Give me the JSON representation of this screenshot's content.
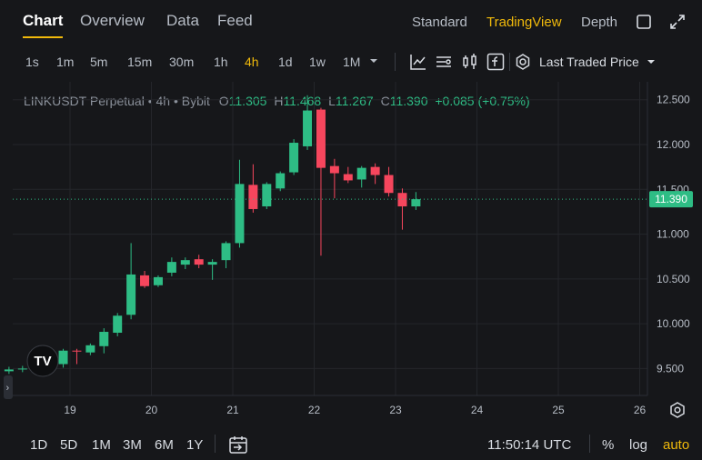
{
  "tabs": [
    {
      "label": "Chart"
    },
    {
      "label": "Overview"
    },
    {
      "label": "Data"
    },
    {
      "label": "Feed"
    }
  ],
  "views": [
    {
      "label": "Standard"
    },
    {
      "label": "TradingView"
    },
    {
      "label": "Depth"
    }
  ],
  "timeframes": [
    "1s",
    "1m",
    "5m",
    "15m",
    "30m",
    "1h",
    "4h",
    "1d",
    "1w",
    "1M"
  ],
  "active_timeframe": "4h",
  "price_source": "Last Traded Price",
  "legend": {
    "symbol": "LINKUSDT Perpetual • 4h • Bybit",
    "o_label": "O",
    "o": "11.305",
    "h_label": "H",
    "h": "11.468",
    "l_label": "L",
    "l": "11.267",
    "c_label": "C",
    "c": "11.390",
    "change": "+0.085 (+0.75%)"
  },
  "bottom": {
    "ranges": [
      "1D",
      "5D",
      "1M",
      "3M",
      "6M",
      "1Y"
    ],
    "time": "11:50:14 UTC",
    "percent": "%",
    "log": "log",
    "auto": "auto"
  },
  "colors": {
    "up": "#2ebd85",
    "down": "#f6465d",
    "accent": "#f0b90b",
    "background": "#16171a",
    "grid": "#24262b"
  },
  "chart_data": {
    "type": "candlestick",
    "y_ticks": [
      "9.500",
      "10.000",
      "10.500",
      "11.000",
      "11.500",
      "12.000",
      "12.500"
    ],
    "x_ticks": [
      "19",
      "20",
      "21",
      "22",
      "23",
      "24",
      "25",
      "26"
    ],
    "ylim": [
      9.2,
      12.7
    ],
    "last_price_label": "11.390",
    "candles": [
      {
        "o": 9.44,
        "h": 9.5,
        "l": 9.41,
        "c": 9.47
      },
      {
        "o": 9.47,
        "h": 9.52,
        "l": 9.44,
        "c": 9.49
      },
      {
        "o": 9.49,
        "h": 9.53,
        "l": 9.46,
        "c": 9.5
      },
      {
        "o": 9.5,
        "h": 9.56,
        "l": 9.48,
        "c": 9.53
      },
      {
        "o": 9.53,
        "h": 9.62,
        "l": 9.5,
        "c": 9.58
      },
      {
        "o": 9.55,
        "h": 9.72,
        "l": 9.51,
        "c": 9.7
      },
      {
        "o": 9.7,
        "h": 9.72,
        "l": 9.55,
        "c": 9.69
      },
      {
        "o": 9.68,
        "h": 9.78,
        "l": 9.65,
        "c": 9.76
      },
      {
        "o": 9.75,
        "h": 9.95,
        "l": 9.67,
        "c": 9.91
      },
      {
        "o": 9.9,
        "h": 10.12,
        "l": 9.86,
        "c": 10.09
      },
      {
        "o": 10.1,
        "h": 10.9,
        "l": 10.05,
        "c": 10.55
      },
      {
        "o": 10.54,
        "h": 10.59,
        "l": 10.4,
        "c": 10.42
      },
      {
        "o": 10.43,
        "h": 10.54,
        "l": 10.41,
        "c": 10.52
      },
      {
        "o": 10.57,
        "h": 10.74,
        "l": 10.53,
        "c": 10.69
      },
      {
        "o": 10.66,
        "h": 10.74,
        "l": 10.61,
        "c": 10.71
      },
      {
        "o": 10.72,
        "h": 10.77,
        "l": 10.62,
        "c": 10.66
      },
      {
        "o": 10.66,
        "h": 10.72,
        "l": 10.49,
        "c": 10.69
      },
      {
        "o": 10.71,
        "h": 10.92,
        "l": 10.62,
        "c": 10.9
      },
      {
        "o": 10.9,
        "h": 11.83,
        "l": 10.85,
        "c": 11.56
      },
      {
        "o": 11.55,
        "h": 11.78,
        "l": 11.24,
        "c": 11.28
      },
      {
        "o": 11.31,
        "h": 11.58,
        "l": 11.28,
        "c": 11.56
      },
      {
        "o": 11.51,
        "h": 11.7,
        "l": 11.48,
        "c": 11.68
      },
      {
        "o": 11.69,
        "h": 12.06,
        "l": 11.66,
        "c": 12.02
      },
      {
        "o": 11.98,
        "h": 12.55,
        "l": 11.94,
        "c": 12.38
      },
      {
        "o": 12.39,
        "h": 12.41,
        "l": 10.76,
        "c": 11.74
      },
      {
        "o": 11.76,
        "h": 11.84,
        "l": 11.4,
        "c": 11.68
      },
      {
        "o": 11.67,
        "h": 11.75,
        "l": 11.57,
        "c": 11.6
      },
      {
        "o": 11.61,
        "h": 11.76,
        "l": 11.52,
        "c": 11.74
      },
      {
        "o": 11.75,
        "h": 11.79,
        "l": 11.56,
        "c": 11.66
      },
      {
        "o": 11.66,
        "h": 11.75,
        "l": 11.42,
        "c": 11.46
      },
      {
        "o": 11.46,
        "h": 11.51,
        "l": 11.05,
        "c": 11.31
      },
      {
        "o": 11.31,
        "h": 11.47,
        "l": 11.27,
        "c": 11.39
      }
    ]
  }
}
